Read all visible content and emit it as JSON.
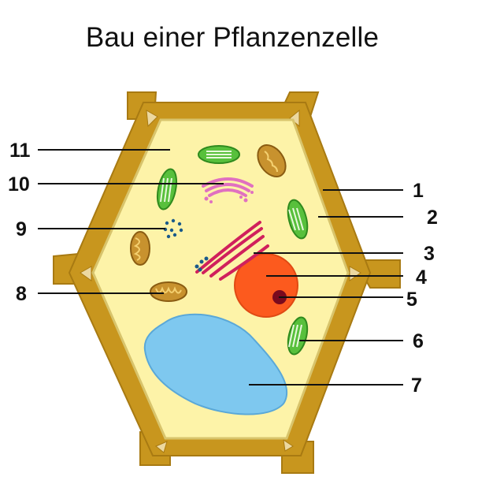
{
  "title": "Bau einer Pflanzenzelle",
  "colors": {
    "cell_wall": "#c8961e",
    "cell_wall_dark": "#a87a12",
    "cytoplasm": "#fdf3a8",
    "vacuole": "#7ec8ef",
    "nucleus": "#fc5a1e",
    "nucleolus": "#7a0a1e",
    "chloroplast": "#58c03c",
    "mitochondrion": "#c8922e",
    "golgi": "#e070c0",
    "endoplasmic_reticulum": "#d0205c",
    "ribosome": "#1a5a8a",
    "leader_line": "#111111"
  },
  "labels": {
    "l1": "1",
    "l2": "2",
    "l3": "3",
    "l4": "4",
    "l5": "5",
    "l6": "6",
    "l7": "7",
    "l8": "8",
    "l9": "9",
    "l10": "10",
    "l11": "11"
  }
}
